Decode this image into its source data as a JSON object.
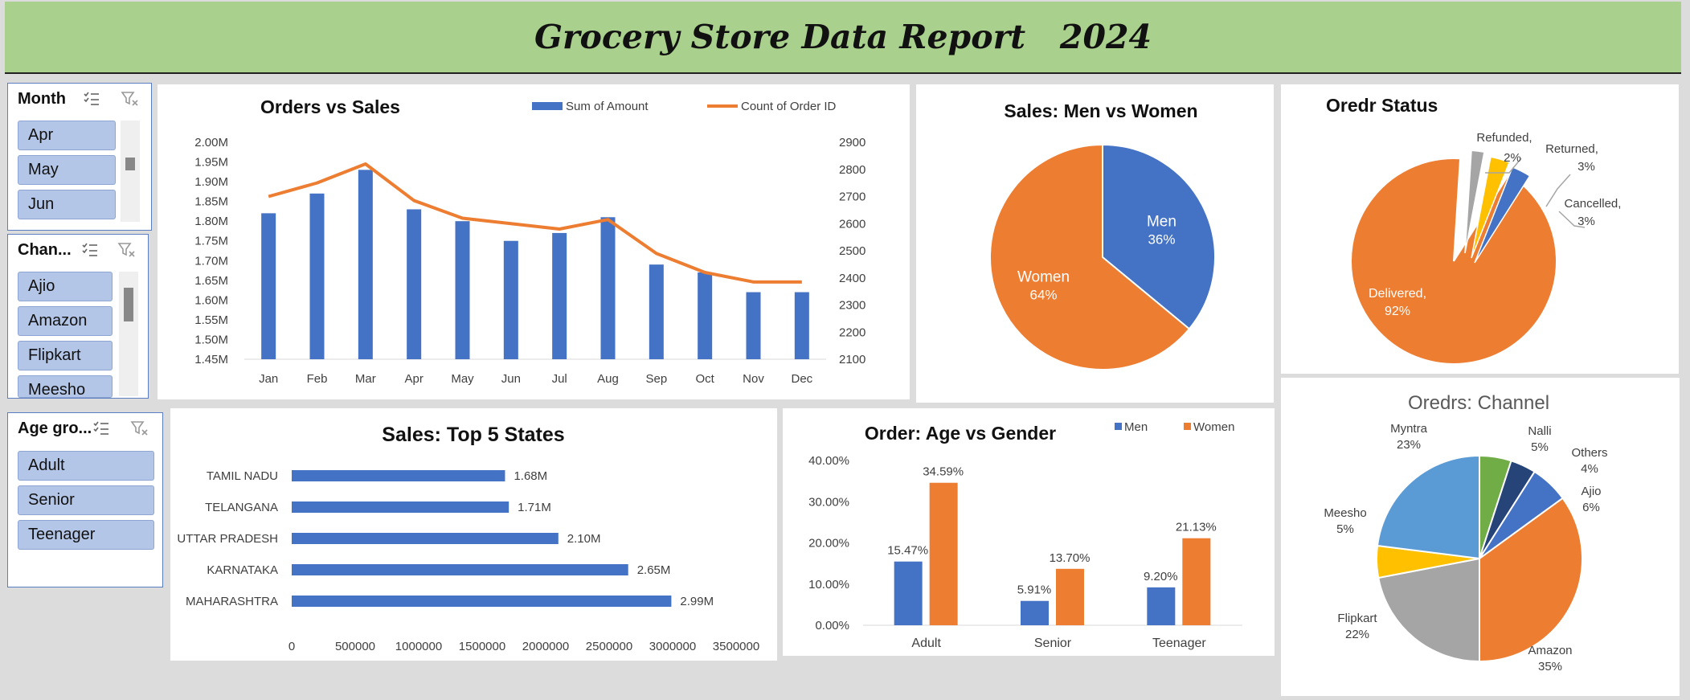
{
  "report_title": "Grocery Store Data Report   2024",
  "slicers": {
    "month": {
      "title": "Month",
      "items": [
        "Apr",
        "May",
        "Jun"
      ]
    },
    "channel": {
      "title": "Chan...",
      "items": [
        "Ajio",
        "Amazon",
        "Flipkart",
        "Meesho"
      ]
    },
    "age_group": {
      "title": "Age gro...",
      "items": [
        "Adult",
        "Senior",
        "Teenager"
      ]
    }
  },
  "icons": [
    "multi-select-icon",
    "clear-filter-icon"
  ],
  "colors": {
    "blue": "#4472c4",
    "orange": "#ed7d31",
    "gray": "#a5a5a5",
    "yellow": "#ffc000",
    "light_blue": "#5b9bd5",
    "green": "#70ad47",
    "navy": "#264478",
    "banner": "#aad08e"
  },
  "chart_data": [
    {
      "id": "orders_vs_sales",
      "type": "bar",
      "title": "Orders vs Sales",
      "categories": [
        "Jan",
        "Feb",
        "Mar",
        "Apr",
        "May",
        "Jun",
        "Jul",
        "Aug",
        "Sep",
        "Oct",
        "Nov",
        "Dec"
      ],
      "series": [
        {
          "name": "Sum of Amount",
          "type": "bar",
          "axis": "left",
          "values": [
            1.82,
            1.87,
            1.93,
            1.83,
            1.8,
            1.75,
            1.77,
            1.81,
            1.69,
            1.67,
            1.62,
            1.62
          ]
        },
        {
          "name": "Count of Order ID",
          "type": "line",
          "axis": "right",
          "values": [
            2700,
            2750,
            2820,
            2685,
            2620,
            2600,
            2580,
            2615,
            2490,
            2420,
            2385,
            2385
          ]
        }
      ],
      "ylim_left": [
        1.45,
        2.0
      ],
      "yticks_left": [
        "2.00M",
        "1.95M",
        "1.90M",
        "1.85M",
        "1.80M",
        "1.75M",
        "1.70M",
        "1.65M",
        "1.60M",
        "1.55M",
        "1.50M",
        "1.45M"
      ],
      "ylim_right": [
        2100,
        2900
      ],
      "yticks_right": [
        "2900",
        "2800",
        "2700",
        "2600",
        "2500",
        "2400",
        "2300",
        "2200",
        "2100"
      ],
      "legend": "top"
    },
    {
      "id": "sales_men_women",
      "type": "pie",
      "title": "Sales: Men vs Women",
      "labels": [
        "Men",
        "Women"
      ],
      "values": [
        36,
        64
      ],
      "value_labels": [
        "36%",
        "64%"
      ]
    },
    {
      "id": "order_status",
      "type": "pie",
      "title": "Oredr Status",
      "labels": [
        "Delivered,",
        "Refunded,",
        "Returned,",
        "Cancelled,"
      ],
      "values": [
        92,
        2,
        3,
        3
      ],
      "value_labels": [
        "92%",
        "2%",
        "3%",
        "3%"
      ]
    },
    {
      "id": "top5_states",
      "type": "bar",
      "orientation": "horizontal",
      "title": "Sales: Top 5 States",
      "categories": [
        "TAMIL NADU",
        "TELANGANA",
        "UTTAR PRADESH",
        "KARNATAKA",
        "MAHARASHTRA"
      ],
      "values": [
        1680000,
        1710000,
        2100000,
        2650000,
        2990000
      ],
      "value_labels": [
        "1.68M",
        "1.71M",
        "2.10M",
        "2.65M",
        "2.99M"
      ],
      "xlim": [
        0,
        3500000
      ],
      "xticks": [
        "0",
        "500000",
        "1000000",
        "1500000",
        "2000000",
        "2500000",
        "3000000",
        "3500000"
      ]
    },
    {
      "id": "age_vs_gender",
      "type": "bar",
      "title": "Order: Age vs Gender",
      "categories": [
        "Adult",
        "Senior",
        "Teenager"
      ],
      "series": [
        {
          "name": "Men",
          "values": [
            15.47,
            5.91,
            9.2
          ],
          "value_labels": [
            "15.47%",
            "5.91%",
            "9.20%"
          ]
        },
        {
          "name": "Women",
          "values": [
            34.59,
            13.7,
            21.13
          ],
          "value_labels": [
            "34.59%",
            "13.70%",
            "21.13%"
          ]
        }
      ],
      "ylim": [
        0,
        40
      ],
      "yticks": [
        "40.00%",
        "30.00%",
        "20.00%",
        "10.00%",
        "0.00%"
      ],
      "legend": "top-right"
    },
    {
      "id": "orders_channel",
      "type": "pie",
      "title": "Oredrs: Channel",
      "labels": [
        "Amazon",
        "Flipkart",
        "Meesho",
        "Myntra",
        "Nalli",
        "Others",
        "Ajio"
      ],
      "values": [
        35,
        22,
        5,
        23,
        5,
        4,
        6
      ],
      "value_labels": [
        "35%",
        "22%",
        "5%",
        "23%",
        "5%",
        "4%",
        "6%"
      ]
    }
  ]
}
